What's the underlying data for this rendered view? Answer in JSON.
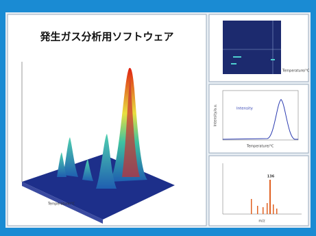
{
  "header": {
    "title": "発生ガス分析用ソフトウェア"
  },
  "panels": {
    "surface": {
      "axis_label": "Temperature/°C"
    },
    "map": {
      "axis_label": "Temperature/°C"
    },
    "profile": {
      "legend": "Intensity",
      "x_label": "Temperature/°C",
      "y_label": "Intensity/a.u."
    },
    "spectrum": {
      "x_label": "m/z",
      "peak_label": "136"
    }
  }
}
